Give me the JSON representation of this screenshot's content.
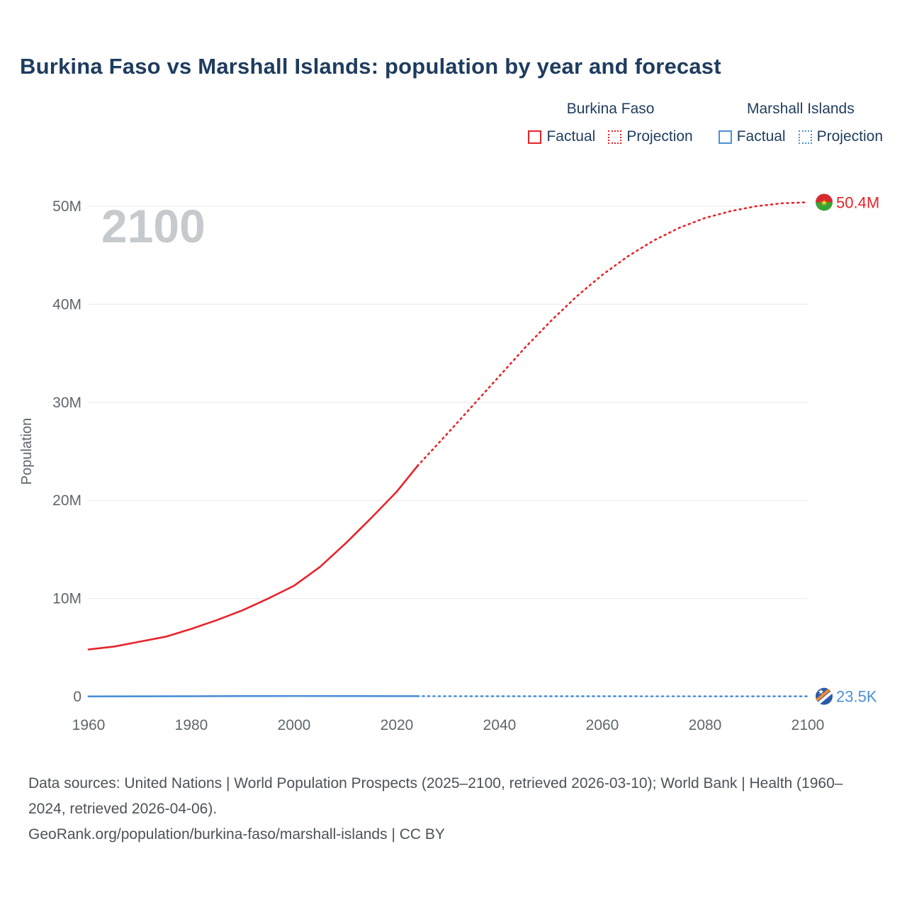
{
  "title": "Burkina Faso vs Marshall Islands: population by year and forecast",
  "watermark": "2100",
  "legend": {
    "groups": [
      {
        "name": "Burkina Faso",
        "color": "#e8232a",
        "items": [
          {
            "label": "Factual",
            "style": "solid"
          },
          {
            "label": "Projection",
            "style": "dotted"
          }
        ]
      },
      {
        "name": "Marshall Islands",
        "color": "#4a90d6",
        "items": [
          {
            "label": "Factual",
            "style": "solid"
          },
          {
            "label": "Projection",
            "style": "dotted"
          }
        ]
      }
    ]
  },
  "chart_data": {
    "type": "line",
    "title": "Burkina Faso vs Marshall Islands: population by year and forecast",
    "xlabel": "",
    "ylabel": "Population",
    "xlim": [
      1960,
      2100
    ],
    "ylim": [
      0,
      50000000
    ],
    "yticks": [
      0,
      10000000,
      20000000,
      30000000,
      40000000,
      50000000
    ],
    "ytick_labels": [
      "0",
      "10M",
      "20M",
      "30M",
      "40M",
      "50M"
    ],
    "xticks": [
      1960,
      1980,
      2000,
      2020,
      2040,
      2060,
      2080,
      2100
    ],
    "grid": "horizontal",
    "legend_position": "top-right",
    "watermark_color": "#c7cacd",
    "series": [
      {
        "name": "Burkina Faso",
        "color": "#e8232a",
        "flag": "burkina-faso-flag",
        "end_label": "50.4M",
        "factual": {
          "x": [
            1960,
            1965,
            1970,
            1975,
            1980,
            1985,
            1990,
            1995,
            2000,
            2005,
            2010,
            2015,
            2020,
            2024
          ],
          "y": [
            4800000,
            5100000,
            5600000,
            6100000,
            6900000,
            7800000,
            8800000,
            10000000,
            11300000,
            13200000,
            15600000,
            18200000,
            20900000,
            23500000
          ]
        },
        "projection": {
          "x": [
            2024,
            2030,
            2035,
            2040,
            2045,
            2050,
            2055,
            2060,
            2065,
            2070,
            2075,
            2080,
            2085,
            2090,
            2095,
            2100
          ],
          "y": [
            23500000,
            26900000,
            29800000,
            32700000,
            35600000,
            38300000,
            40800000,
            43000000,
            44900000,
            46500000,
            47800000,
            48800000,
            49500000,
            50000000,
            50300000,
            50400000
          ]
        }
      },
      {
        "name": "Marshall Islands",
        "color": "#4a90d6",
        "flag": "marshall-islands-flag",
        "end_label": "23.5K",
        "factual": {
          "x": [
            1960,
            1970,
            1980,
            1990,
            2000,
            2010,
            2020,
            2024
          ],
          "y": [
            15000,
            23000,
            31000,
            47000,
            54000,
            53000,
            43000,
            38000
          ]
        },
        "projection": {
          "x": [
            2024,
            2040,
            2060,
            2080,
            2100
          ],
          "y": [
            38000,
            33000,
            29000,
            26000,
            23500
          ]
        }
      }
    ]
  },
  "footer": {
    "sources": "Data sources: United Nations | World Population Prospects (2025–2100, retrieved 2026-03-10); World Bank | Health (1960–2024, retrieved 2026-04-06).",
    "attribution": "GeoRank.org/population/burkina-faso/marshall-islands | CC BY"
  }
}
